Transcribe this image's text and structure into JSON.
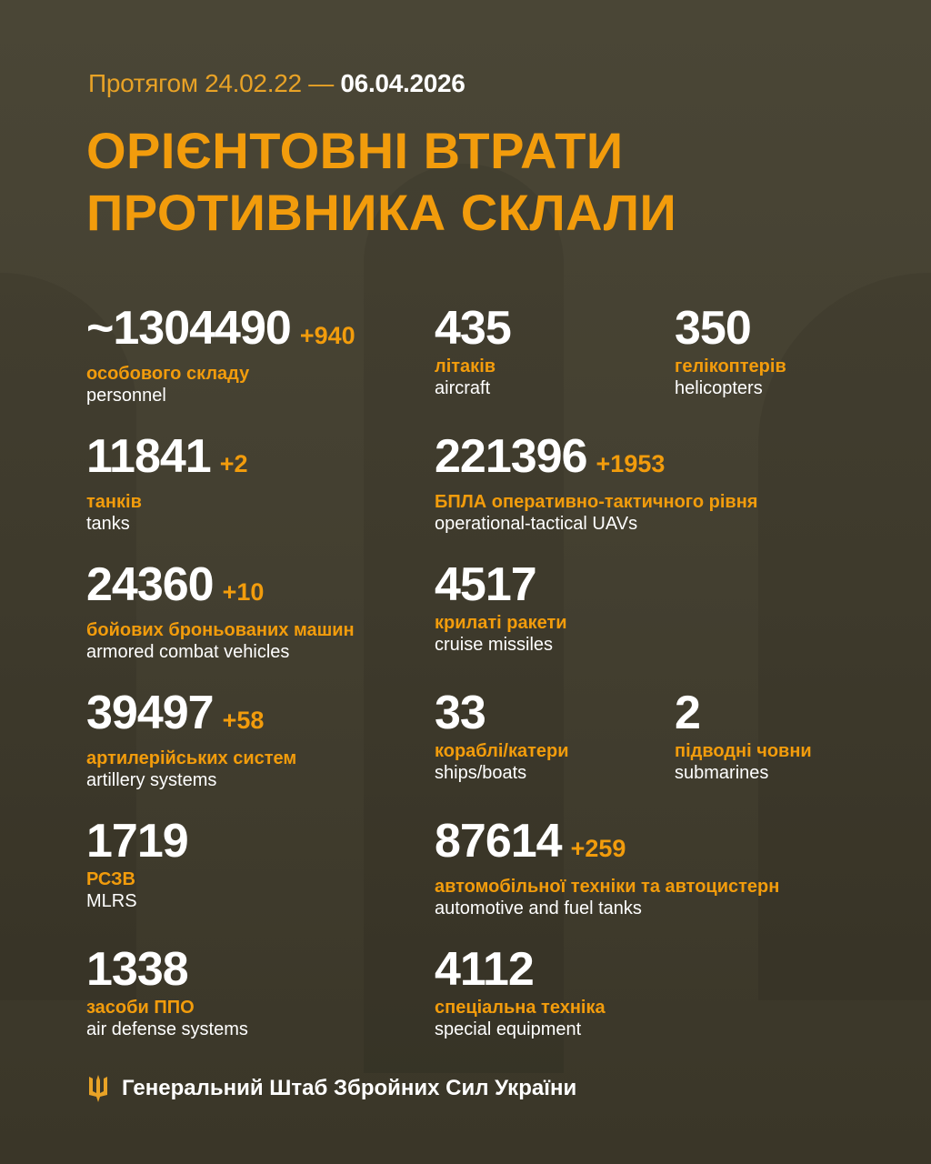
{
  "header": {
    "period_prefix": "Протягом 24.02.22 —",
    "period_end": "06.04.2026",
    "title_line1": "ОРІЄНТОВНІ ВТРАТИ",
    "title_line2": "ПРОТИВНИКА СКЛАЛИ"
  },
  "items": [
    {
      "value": "~1304490",
      "delta": "+940",
      "ua": "особового складу",
      "en": "personnel"
    },
    {
      "value": "435",
      "delta": "",
      "ua": "літаків",
      "en": "aircraft"
    },
    {
      "value": "350",
      "delta": "",
      "ua": "гелікоптерів",
      "en": "helicopters"
    },
    {
      "value": "11841",
      "delta": "+2",
      "ua": "танків",
      "en": "tanks"
    },
    {
      "value": "221396",
      "delta": "+1953",
      "ua": "БПЛА оперативно-тактичного рівня",
      "en": "operational-tactical UAVs"
    },
    {
      "value": "24360",
      "delta": "+10",
      "ua": "бойових броньованих машин",
      "en": "armored combat vehicles"
    },
    {
      "value": "4517",
      "delta": "",
      "ua": "крилаті ракети",
      "en": "cruise missiles"
    },
    {
      "value": "39497",
      "delta": "+58",
      "ua": "артилерійських систем",
      "en": "artillery systems"
    },
    {
      "value": "33",
      "delta": "",
      "ua": "кораблі/катери",
      "en": "ships/boats"
    },
    {
      "value": "2",
      "delta": "",
      "ua": "підводні човни",
      "en": "submarines"
    },
    {
      "value": "1719",
      "delta": "",
      "ua": "РСЗВ",
      "en": "MLRS"
    },
    {
      "value": "87614",
      "delta": "+259",
      "ua": "автомобільної техніки та автоцистерн",
      "en": "automotive and fuel tanks"
    },
    {
      "value": "1338",
      "delta": "",
      "ua": "засоби ППО",
      "en": "air defense systems"
    },
    {
      "value": "4112",
      "delta": "",
      "ua": "спеціальна техніка",
      "en": "special equipment"
    }
  ],
  "footer": {
    "icon": "trident-icon",
    "text": "Генеральний Штаб Збройних Сил України"
  },
  "colors": {
    "accent": "#f29c0c",
    "background": "#433f30",
    "text": "#ffffff"
  }
}
